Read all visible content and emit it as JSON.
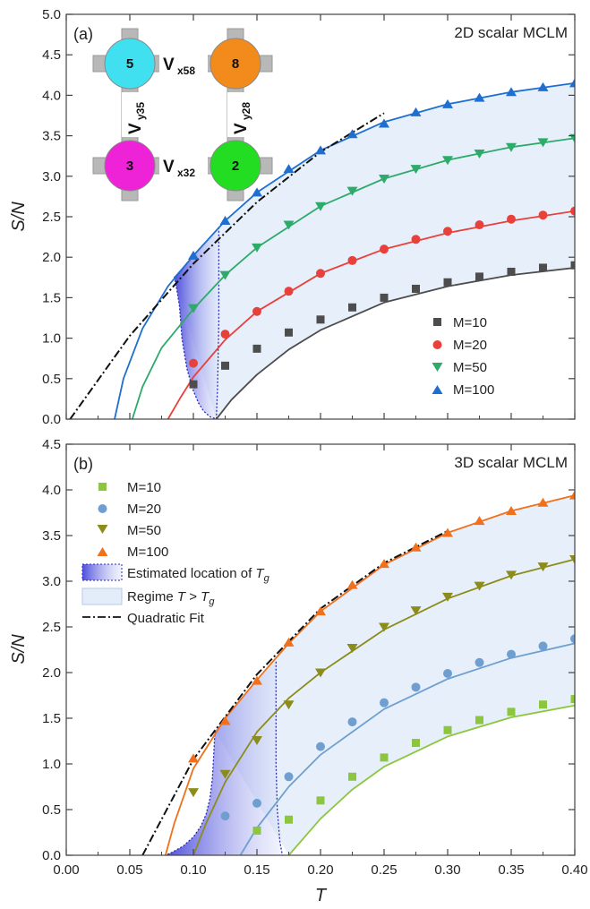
{
  "figure": {
    "x_axis_label": "T",
    "y_axis_label": "S/N"
  },
  "colors": {
    "m10_2d": "#4d4d4d",
    "m20_2d": "#e8413c",
    "m50_2d": "#2eaa6a",
    "m100_2d": "#1e6fd0",
    "m10_3d": "#8cc63f",
    "m20_3d": "#6e9fd0",
    "m50_3d": "#8c8c1c",
    "m100_3d": "#f0701c",
    "regime_fill": "#e3edf9",
    "tg_boundary": "#2a2ab8"
  },
  "inset": {
    "sites": [
      {
        "label": "5",
        "color": "#40e0f0"
      },
      {
        "label": "8",
        "color": "#f28a1c"
      },
      {
        "label": "3",
        "color": "#ee22d6"
      },
      {
        "label": "2",
        "color": "#22dd22"
      }
    ],
    "couplings": [
      {
        "main": "V",
        "sub": "x58"
      },
      {
        "main": "V",
        "sub": "x32"
      },
      {
        "main": "V",
        "sub": "y35"
      },
      {
        "main": "V",
        "sub": "y28"
      }
    ]
  },
  "chart_data": [
    {
      "type": "scatter",
      "panel": "(a)",
      "title": "2D scalar MCLM",
      "xlabel": "T",
      "ylabel": "S/N",
      "xlim": [
        0.0,
        0.4
      ],
      "ylim": [
        0.0,
        5.0
      ],
      "xticks": [
        "0.00",
        "0.05",
        "0.10",
        "0.15",
        "0.20",
        "0.25",
        "0.30",
        "0.35",
        "0.40"
      ],
      "yticks": [
        "0.0",
        "0.5",
        "1.0",
        "1.5",
        "2.0",
        "2.5",
        "3.0",
        "3.5",
        "4.0",
        "4.5",
        "5.0"
      ],
      "legend_position": "bottom-right",
      "series": [
        {
          "name": "M=10",
          "marker": "square",
          "color": "#4d4d4d",
          "x": [
            0.1,
            0.125,
            0.15,
            0.175,
            0.2,
            0.225,
            0.25,
            0.275,
            0.3,
            0.325,
            0.35,
            0.375,
            0.4
          ],
          "y": [
            0.43,
            0.66,
            0.87,
            1.07,
            1.23,
            1.38,
            1.5,
            1.61,
            1.69,
            1.76,
            1.82,
            1.87,
            1.9
          ]
        },
        {
          "name": "M=20",
          "marker": "circle",
          "color": "#e8413c",
          "x": [
            0.1,
            0.125,
            0.15,
            0.175,
            0.2,
            0.225,
            0.25,
            0.275,
            0.3,
            0.325,
            0.35,
            0.375,
            0.4
          ],
          "y": [
            0.69,
            1.05,
            1.33,
            1.58,
            1.8,
            1.96,
            2.1,
            2.22,
            2.32,
            2.4,
            2.47,
            2.52,
            2.57
          ]
        },
        {
          "name": "M=50",
          "marker": "triangle-down",
          "color": "#2eaa6a",
          "x": [
            0.1,
            0.125,
            0.15,
            0.175,
            0.2,
            0.225,
            0.25,
            0.275,
            0.3,
            0.325,
            0.35,
            0.375,
            0.4
          ],
          "y": [
            1.37,
            1.78,
            2.12,
            2.4,
            2.63,
            2.82,
            2.97,
            3.09,
            3.2,
            3.28,
            3.36,
            3.42,
            3.47
          ]
        },
        {
          "name": "M=100",
          "marker": "triangle-up",
          "color": "#1e6fd0",
          "x": [
            0.1,
            0.125,
            0.15,
            0.175,
            0.2,
            0.225,
            0.25,
            0.275,
            0.3,
            0.325,
            0.35,
            0.375,
            0.4
          ],
          "y": [
            2.02,
            2.45,
            2.8,
            3.09,
            3.32,
            3.52,
            3.65,
            3.79,
            3.89,
            3.97,
            4.04,
            4.1,
            4.15
          ]
        }
      ],
      "fit_curves": [
        {
          "color": "#4d4d4d",
          "x": [
            0.118,
            0.13,
            0.15,
            0.175,
            0.2,
            0.25,
            0.3,
            0.35,
            0.4
          ],
          "y": [
            0.0,
            0.24,
            0.55,
            0.86,
            1.1,
            1.44,
            1.64,
            1.78,
            1.87
          ]
        },
        {
          "color": "#e8413c",
          "x": [
            0.08,
            0.09,
            0.1,
            0.125,
            0.15,
            0.2,
            0.25,
            0.3,
            0.35,
            0.4
          ],
          "y": [
            0.0,
            0.27,
            0.52,
            0.98,
            1.33,
            1.8,
            2.1,
            2.3,
            2.45,
            2.57
          ]
        },
        {
          "color": "#2eaa6a",
          "x": [
            0.052,
            0.06,
            0.075,
            0.1,
            0.125,
            0.15,
            0.2,
            0.25,
            0.3,
            0.35,
            0.4
          ],
          "y": [
            0.0,
            0.4,
            0.88,
            1.36,
            1.78,
            2.12,
            2.63,
            2.97,
            3.2,
            3.36,
            3.47
          ]
        },
        {
          "color": "#1e6fd0",
          "x": [
            0.038,
            0.045,
            0.06,
            0.08,
            0.1,
            0.125,
            0.15,
            0.2,
            0.25,
            0.3,
            0.35,
            0.4
          ],
          "y": [
            0.0,
            0.5,
            1.12,
            1.64,
            2.02,
            2.45,
            2.8,
            3.32,
            3.67,
            3.89,
            4.04,
            4.15
          ]
        }
      ],
      "quadratic_fit": {
        "x": [
          0.003,
          0.05,
          0.1,
          0.15,
          0.2,
          0.25
        ],
        "y": [
          0.0,
          1.03,
          1.92,
          2.68,
          3.3,
          3.78
        ]
      },
      "tg_band": {
        "upper": {
          "x": [
            0.085,
            0.09,
            0.095,
            0.1,
            0.105,
            0.11,
            0.115,
            0.12
          ],
          "y": [
            1.76,
            1.85,
            1.94,
            2.02,
            2.11,
            2.2,
            2.29,
            2.37
          ]
        },
        "left_edge": {
          "x": [
            0.085,
            0.087,
            0.089,
            0.09,
            0.091,
            0.093,
            0.095,
            0.098,
            0.1,
            0.104,
            0.108,
            0.113,
            0.118
          ],
          "y": [
            1.76,
            1.6,
            1.4,
            1.2,
            1.0,
            0.8,
            0.62,
            0.45,
            0.35,
            0.2,
            0.1,
            0.03,
            0.0
          ]
        },
        "right_edge": {
          "x": [
            0.12,
            0.12,
            0.119,
            0.118
          ],
          "y": [
            2.37,
            1.2,
            0.4,
            0.0
          ]
        }
      },
      "regime_upper": {
        "x": [
          0.085,
          0.1,
          0.125,
          0.15,
          0.2,
          0.25,
          0.3,
          0.35,
          0.4
        ],
        "y": [
          1.76,
          2.02,
          2.45,
          2.8,
          3.32,
          3.67,
          3.89,
          4.04,
          4.15
        ]
      },
      "regime_lower": {
        "x": [
          0.118,
          0.13,
          0.15,
          0.175,
          0.2,
          0.25,
          0.3,
          0.35,
          0.4
        ],
        "y": [
          0.0,
          0.24,
          0.55,
          0.86,
          1.1,
          1.44,
          1.64,
          1.78,
          1.87
        ]
      }
    },
    {
      "type": "scatter",
      "panel": "(b)",
      "title": "3D scalar MCLM",
      "xlabel": "T",
      "ylabel": "S/N",
      "xlim": [
        0.0,
        0.4
      ],
      "ylim": [
        0.0,
        4.5
      ],
      "xticks": [
        "0.00",
        "0.05",
        "0.10",
        "0.15",
        "0.20",
        "0.25",
        "0.30",
        "0.35",
        "0.40"
      ],
      "yticks": [
        "0.0",
        "0.5",
        "1.0",
        "1.5",
        "2.0",
        "2.5",
        "3.0",
        "3.5",
        "4.0",
        "4.5"
      ],
      "legend_position": "top-left",
      "legend_extra": [
        {
          "kind": "tg-swatch",
          "label": "Estimated location of ",
          "var": "T",
          "sub": "g"
        },
        {
          "kind": "regime-swatch",
          "label": "Regime ",
          "var": "T",
          "op": " > ",
          "var2": "T",
          "sub": "g"
        },
        {
          "kind": "dashdot-line",
          "label": "Quadratic Fit"
        }
      ],
      "series": [
        {
          "name": "M=10",
          "marker": "square",
          "color": "#8cc63f",
          "x": [
            0.15,
            0.175,
            0.2,
            0.225,
            0.25,
            0.275,
            0.3,
            0.325,
            0.35,
            0.375,
            0.4
          ],
          "y": [
            0.27,
            0.39,
            0.6,
            0.86,
            1.07,
            1.23,
            1.37,
            1.48,
            1.57,
            1.65,
            1.71
          ]
        },
        {
          "name": "M=20",
          "marker": "circle",
          "color": "#6e9fd0",
          "x": [
            0.125,
            0.15,
            0.175,
            0.2,
            0.225,
            0.25,
            0.275,
            0.3,
            0.325,
            0.35,
            0.375,
            0.4
          ],
          "y": [
            0.43,
            0.57,
            0.86,
            1.19,
            1.46,
            1.67,
            1.84,
            1.99,
            2.11,
            2.2,
            2.29,
            2.37
          ]
        },
        {
          "name": "M=50",
          "marker": "triangle-down",
          "color": "#8c8c1c",
          "x": [
            0.1,
            0.125,
            0.15,
            0.175,
            0.2,
            0.225,
            0.25,
            0.275,
            0.3,
            0.325,
            0.35,
            0.375,
            0.4
          ],
          "y": [
            0.69,
            0.89,
            1.26,
            1.65,
            2.0,
            2.27,
            2.5,
            2.68,
            2.83,
            2.95,
            3.07,
            3.16,
            3.24
          ]
        },
        {
          "name": "M=100",
          "marker": "triangle-up",
          "color": "#f0701c",
          "x": [
            0.1,
            0.125,
            0.15,
            0.175,
            0.2,
            0.225,
            0.25,
            0.275,
            0.3,
            0.325,
            0.35,
            0.375,
            0.4
          ],
          "y": [
            1.06,
            1.47,
            1.91,
            2.33,
            2.67,
            2.96,
            3.19,
            3.37,
            3.53,
            3.66,
            3.77,
            3.86,
            3.94
          ]
        }
      ],
      "fit_curves": [
        {
          "color": "#8cc63f",
          "x": [
            0.175,
            0.2,
            0.225,
            0.25,
            0.3,
            0.35,
            0.4
          ],
          "y": [
            0.0,
            0.4,
            0.72,
            0.97,
            1.3,
            1.51,
            1.64
          ]
        },
        {
          "color": "#6e9fd0",
          "x": [
            0.137,
            0.15,
            0.175,
            0.2,
            0.25,
            0.3,
            0.35,
            0.4
          ],
          "y": [
            0.0,
            0.3,
            0.75,
            1.1,
            1.6,
            1.93,
            2.16,
            2.32
          ]
        },
        {
          "color": "#8c8c1c",
          "x": [
            0.1,
            0.11,
            0.125,
            0.15,
            0.175,
            0.2,
            0.25,
            0.3,
            0.35,
            0.4
          ],
          "y": [
            0.0,
            0.35,
            0.8,
            1.35,
            1.72,
            2.0,
            2.47,
            2.81,
            3.06,
            3.24
          ]
        },
        {
          "color": "#f0701c",
          "x": [
            0.078,
            0.085,
            0.1,
            0.125,
            0.15,
            0.175,
            0.2,
            0.25,
            0.3,
            0.35,
            0.4
          ],
          "y": [
            0.0,
            0.35,
            0.95,
            1.5,
            1.92,
            2.32,
            2.67,
            3.18,
            3.53,
            3.77,
            3.94
          ]
        }
      ],
      "quadratic_fit": {
        "x": [
          0.06,
          0.1,
          0.15,
          0.2,
          0.25,
          0.3
        ],
        "y": [
          0.0,
          1.05,
          1.98,
          2.7,
          3.2,
          3.55
        ]
      },
      "tg_band": {
        "upper": {
          "x": [
            0.117,
            0.125,
            0.135,
            0.145,
            0.155,
            0.165
          ],
          "y": [
            1.36,
            1.5,
            1.68,
            1.82,
            1.98,
            2.12
          ]
        },
        "left_edge": {
          "x": [
            0.117,
            0.116,
            0.115,
            0.113,
            0.11,
            0.106,
            0.1,
            0.092,
            0.083,
            0.078
          ],
          "y": [
            1.36,
            1.1,
            0.85,
            0.62,
            0.45,
            0.32,
            0.2,
            0.1,
            0.03,
            0.0
          ]
        },
        "right_edge": {
          "x": [
            0.165,
            0.165,
            0.166,
            0.168,
            0.17
          ],
          "y": [
            2.12,
            1.0,
            0.5,
            0.15,
            0.0
          ]
        }
      },
      "regime_upper": {
        "x": [
          0.117,
          0.125,
          0.15,
          0.175,
          0.2,
          0.25,
          0.3,
          0.35,
          0.4
        ],
        "y": [
          1.36,
          1.5,
          1.92,
          2.32,
          2.67,
          3.18,
          3.53,
          3.77,
          3.94
        ]
      },
      "regime_lower": {
        "x": [
          0.175,
          0.2,
          0.225,
          0.25,
          0.3,
          0.35,
          0.4
        ],
        "y": [
          0.0,
          0.4,
          0.72,
          0.97,
          1.3,
          1.51,
          1.64
        ]
      }
    }
  ]
}
